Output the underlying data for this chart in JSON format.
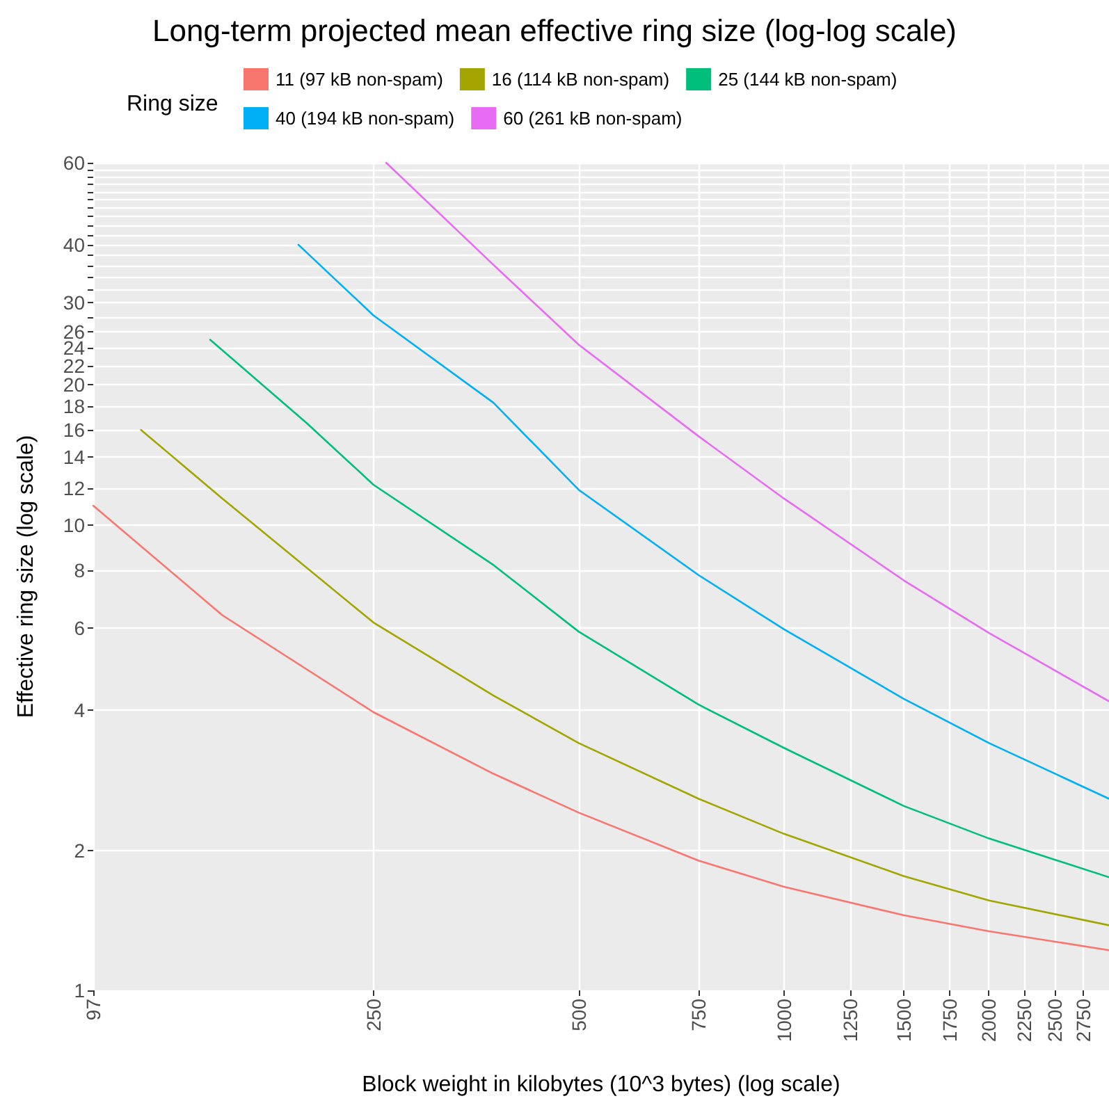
{
  "chart_data": {
    "type": "line",
    "title": "Long-term projected mean effective ring size (log-log scale)",
    "xlabel": "Block weight in kilobytes (10^3 bytes) (log scale)",
    "ylabel": "Effective ring size (log scale)",
    "legend_title": "Ring size",
    "log": "xy",
    "grid": true,
    "legend": "top",
    "marker": "none",
    "xlim": [
      97,
      3000
    ],
    "ylim": [
      1,
      60
    ],
    "xticks": [
      97,
      250,
      500,
      750,
      1000,
      1250,
      1500,
      1750,
      2000,
      2250,
      2500,
      2750
    ],
    "yticks": [
      1,
      2,
      4,
      6,
      8,
      10,
      12,
      14,
      16,
      18,
      20,
      22,
      24,
      26,
      {
        "value": 28,
        "label": null
      },
      30,
      {
        "value": 32,
        "label": null
      },
      {
        "value": 34,
        "label": null
      },
      {
        "value": 36,
        "label": null
      },
      {
        "value": 38,
        "label": null
      },
      40,
      {
        "value": 42,
        "label": null
      },
      {
        "value": 44,
        "label": null
      },
      {
        "value": 46,
        "label": null
      },
      {
        "value": 48,
        "label": null
      },
      {
        "value": 50,
        "label": null
      },
      {
        "value": 52,
        "label": null
      },
      {
        "value": 54,
        "label": null
      },
      {
        "value": 56,
        "label": null
      },
      {
        "value": 58,
        "label": null
      },
      60
    ],
    "series": [
      {
        "name": "11 (97 kB non-spam)",
        "color": "#f8766d",
        "x": [
          97,
          150,
          250,
          375,
          500,
          750,
          1000,
          1500,
          2000,
          3000
        ],
        "values": [
          11,
          6.4,
          3.96,
          2.92,
          2.41,
          1.9,
          1.67,
          1.45,
          1.34,
          1.22
        ]
      },
      {
        "name": "16 (114 kB non-spam)",
        "color": "#a3a500",
        "x": [
          114,
          150,
          250,
          375,
          500,
          750,
          1000,
          1500,
          2000,
          3000
        ],
        "values": [
          16,
          11.4,
          6.17,
          4.3,
          3.4,
          2.58,
          2.17,
          1.76,
          1.56,
          1.38
        ]
      },
      {
        "name": "25 (144 kB non-spam)",
        "color": "#00bf7d",
        "x": [
          144,
          200,
          250,
          375,
          500,
          750,
          1000,
          1500,
          2000,
          3000
        ],
        "values": [
          25,
          16.5,
          12.2,
          8.2,
          5.9,
          4.11,
          3.32,
          2.49,
          2.12,
          1.75
        ]
      },
      {
        "name": "40 (194 kB non-spam)",
        "color": "#00b0f6",
        "x": [
          194,
          250,
          375,
          500,
          750,
          1000,
          1500,
          2000,
          3000
        ],
        "values": [
          40,
          28.2,
          18.3,
          11.9,
          7.8,
          5.97,
          4.23,
          3.4,
          2.58
        ]
      },
      {
        "name": "60 (261 kB non-spam)",
        "color": "#e76bf3",
        "x": [
          261,
          375,
          500,
          750,
          1000,
          1500,
          2000,
          3000
        ],
        "values": [
          60,
          36.2,
          24.4,
          15.5,
          11.4,
          7.6,
          5.86,
          4.18
        ]
      }
    ]
  }
}
